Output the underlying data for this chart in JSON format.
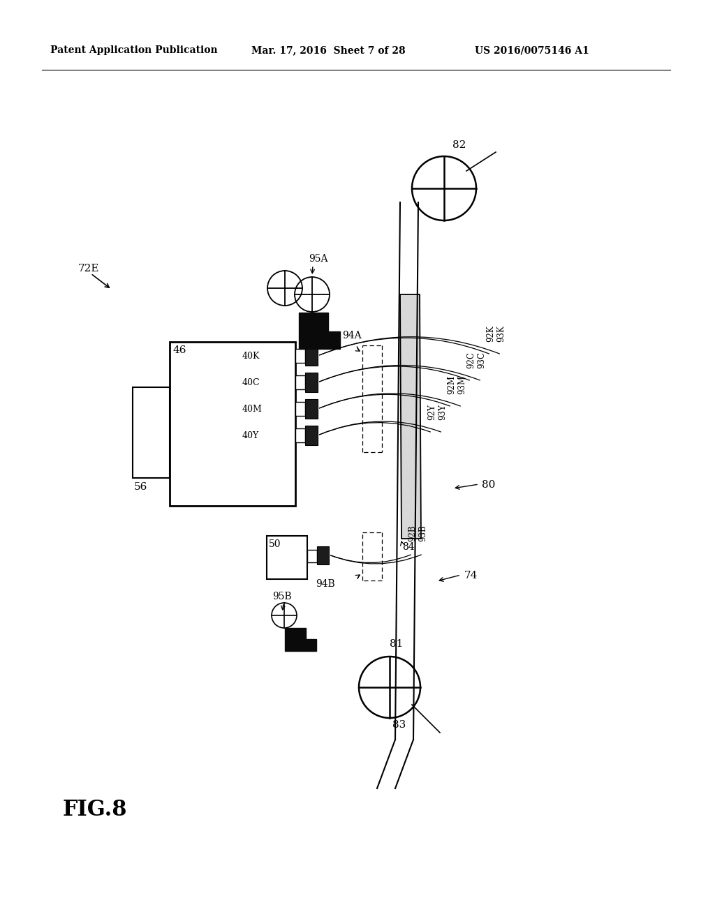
{
  "bg_color": "#ffffff",
  "lc": "#000000",
  "header_left": "Patent Application Publication",
  "header_mid": "Mar. 17, 2016  Sheet 7 of 28",
  "header_right": "US 2016/0075146 A1",
  "fig_label": "FIG.8"
}
